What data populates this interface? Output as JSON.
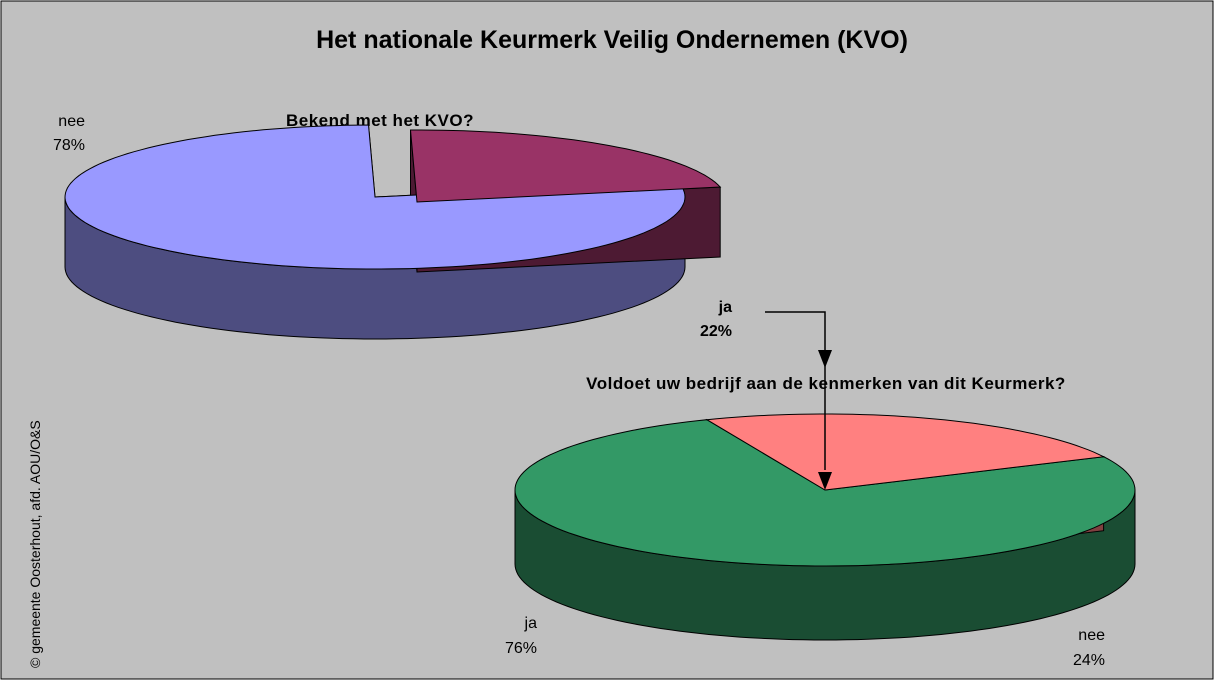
{
  "title": "Het nationale Keurmerk Veilig Ondernemen (KVO)",
  "credit": "© gemeente Oosterhout, afd. AOU/O&S",
  "chart_data": [
    {
      "type": "pie3d",
      "title": "Bekend met het KVO?",
      "categories": [
        "nee",
        "ja"
      ],
      "values": [
        78,
        22
      ],
      "value_labels": [
        "78%",
        "22%"
      ],
      "colors": [
        "#9999ff",
        "#993366"
      ],
      "exploded": [
        false,
        true
      ]
    },
    {
      "type": "pie3d",
      "title": "Voldoet uw bedrijf aan de kenmerken van dit Keurmerk?",
      "categories": [
        "ja",
        "nee"
      ],
      "values": [
        76,
        24
      ],
      "value_labels": [
        "76%",
        "24%"
      ],
      "colors": [
        "#339966",
        "#ff8080"
      ],
      "exploded": [
        false,
        false
      ]
    }
  ]
}
